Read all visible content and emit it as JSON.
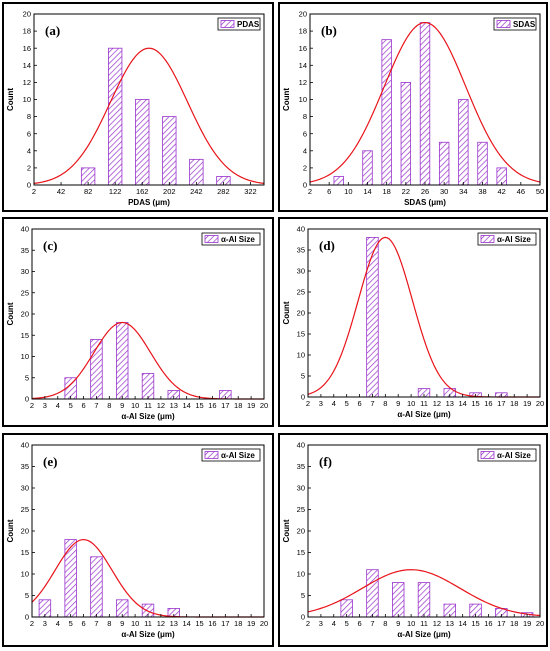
{
  "chart_data": [
    {
      "type": "bar",
      "panel_label": "(a)",
      "xlabel": "PDAS (μm)",
      "ylabel": "Count",
      "legend": "PDAS",
      "legend_position": "top-right",
      "xlim": [
        2,
        342
      ],
      "ylim": [
        0,
        20
      ],
      "xticks": [
        2,
        42,
        82,
        122,
        162,
        202,
        242,
        282,
        322
      ],
      "yticks": [
        0,
        2,
        4,
        6,
        8,
        10,
        12,
        14,
        16,
        18,
        20
      ],
      "bars": [
        {
          "x": 82,
          "value": 2
        },
        {
          "x": 122,
          "value": 16
        },
        {
          "x": 162,
          "value": 10
        },
        {
          "x": 202,
          "value": 8
        },
        {
          "x": 242,
          "value": 3
        },
        {
          "x": 282,
          "value": 1
        }
      ],
      "bin_width": 40,
      "bar_fraction": 0.5,
      "fit": {
        "peak": 16,
        "mean": 172,
        "sd": 57
      },
      "bar_color": "#9933cc",
      "fit_color": "#e8141a"
    },
    {
      "type": "bar",
      "panel_label": "(b)",
      "xlabel": "SDAS (μm)",
      "ylabel": "Count",
      "legend": "SDAS",
      "legend_position": "top-right",
      "xlim": [
        2,
        50
      ],
      "ylim": [
        0,
        20
      ],
      "xticks": [
        2,
        6,
        10,
        14,
        18,
        22,
        26,
        30,
        34,
        38,
        42,
        46,
        50
      ],
      "yticks": [
        0,
        2,
        4,
        6,
        8,
        10,
        12,
        14,
        16,
        18,
        20
      ],
      "bars": [
        {
          "x": 8,
          "value": 1
        },
        {
          "x": 14,
          "value": 4
        },
        {
          "x": 18,
          "value": 17
        },
        {
          "x": 22,
          "value": 12
        },
        {
          "x": 26,
          "value": 19
        },
        {
          "x": 30,
          "value": 5
        },
        {
          "x": 34,
          "value": 10
        },
        {
          "x": 38,
          "value": 5
        },
        {
          "x": 42,
          "value": 2
        }
      ],
      "bin_width": 4,
      "bar_fraction": 0.5,
      "fit": {
        "peak": 19,
        "mean": 26,
        "sd": 8.5
      },
      "bar_color": "#9933cc",
      "fit_color": "#e8141a"
    },
    {
      "type": "bar",
      "panel_label": "(c)",
      "xlabel": "α-Al Size (μm)",
      "ylabel": "Count",
      "legend": "α-Al Size",
      "legend_position": "top-right",
      "xlim": [
        2,
        20
      ],
      "ylim": [
        0,
        40
      ],
      "xticks": [
        2,
        3,
        4,
        5,
        6,
        7,
        8,
        9,
        10,
        11,
        12,
        13,
        14,
        15,
        16,
        17,
        18,
        19,
        20
      ],
      "yticks": [
        0,
        5,
        10,
        15,
        20,
        25,
        30,
        35,
        40
      ],
      "bars": [
        {
          "x": 5,
          "value": 5
        },
        {
          "x": 7,
          "value": 14
        },
        {
          "x": 9,
          "value": 18
        },
        {
          "x": 11,
          "value": 6
        },
        {
          "x": 13,
          "value": 2
        },
        {
          "x": 17,
          "value": 2
        }
      ],
      "bin_width": 1,
      "bar_fraction": 0.9,
      "fit": {
        "peak": 18,
        "mean": 9,
        "sd": 2.2
      },
      "bar_color": "#9933cc",
      "fit_color": "#e8141a"
    },
    {
      "type": "bar",
      "panel_label": "(d)",
      "xlabel": "α-Al Size (μm)",
      "ylabel": "Count",
      "legend": "α-Al Size",
      "legend_position": "top-right",
      "xlim": [
        2,
        20
      ],
      "ylim": [
        0,
        40
      ],
      "xticks": [
        2,
        3,
        4,
        5,
        6,
        7,
        8,
        9,
        10,
        11,
        12,
        13,
        14,
        15,
        16,
        17,
        18,
        19,
        20
      ],
      "yticks": [
        0,
        5,
        10,
        15,
        20,
        25,
        30,
        35,
        40
      ],
      "bars": [
        {
          "x": 7,
          "value": 38
        },
        {
          "x": 11,
          "value": 2
        },
        {
          "x": 13,
          "value": 2
        },
        {
          "x": 15,
          "value": 1
        },
        {
          "x": 17,
          "value": 1
        }
      ],
      "bin_width": 1,
      "bar_fraction": 0.9,
      "fit": {
        "peak": 38,
        "mean": 8,
        "sd": 2.1
      },
      "bar_color": "#9933cc",
      "fit_color": "#e8141a"
    },
    {
      "type": "bar",
      "panel_label": "(e)",
      "xlabel": "α-Al Size (μm)",
      "ylabel": "Count",
      "legend": "α-Al Size",
      "legend_position": "top-right",
      "xlim": [
        2,
        20
      ],
      "ylim": [
        0,
        40
      ],
      "xticks": [
        2,
        3,
        4,
        5,
        6,
        7,
        8,
        9,
        10,
        11,
        12,
        13,
        14,
        15,
        16,
        17,
        18,
        19,
        20
      ],
      "yticks": [
        0,
        5,
        10,
        15,
        20,
        25,
        30,
        35,
        40
      ],
      "bars": [
        {
          "x": 3,
          "value": 4
        },
        {
          "x": 5,
          "value": 18
        },
        {
          "x": 7,
          "value": 14
        },
        {
          "x": 9,
          "value": 4
        },
        {
          "x": 11,
          "value": 3
        },
        {
          "x": 13,
          "value": 2
        }
      ],
      "bin_width": 1,
      "bar_fraction": 0.9,
      "fit": {
        "peak": 18,
        "mean": 6,
        "sd": 2.2
      },
      "bar_color": "#9933cc",
      "fit_color": "#e8141a"
    },
    {
      "type": "bar",
      "panel_label": "(f)",
      "xlabel": "α-Al Size (μm)",
      "ylabel": "Count",
      "legend": "α-Al Size",
      "legend_position": "top-right",
      "xlim": [
        2,
        20
      ],
      "ylim": [
        0,
        40
      ],
      "xticks": [
        2,
        3,
        4,
        5,
        6,
        7,
        8,
        9,
        10,
        11,
        12,
        13,
        14,
        15,
        16,
        17,
        18,
        19,
        20
      ],
      "yticks": [
        0,
        5,
        10,
        15,
        20,
        25,
        30,
        35,
        40
      ],
      "bars": [
        {
          "x": 5,
          "value": 4
        },
        {
          "x": 7,
          "value": 11
        },
        {
          "x": 9,
          "value": 8
        },
        {
          "x": 11,
          "value": 8
        },
        {
          "x": 13,
          "value": 3
        },
        {
          "x": 15,
          "value": 3
        },
        {
          "x": 17,
          "value": 2
        },
        {
          "x": 19,
          "value": 1
        }
      ],
      "bin_width": 1,
      "bar_fraction": 0.9,
      "fit": {
        "peak": 11,
        "mean": 10,
        "sd": 3.8
      },
      "bar_color": "#9933cc",
      "fit_color": "#e8141a"
    }
  ]
}
